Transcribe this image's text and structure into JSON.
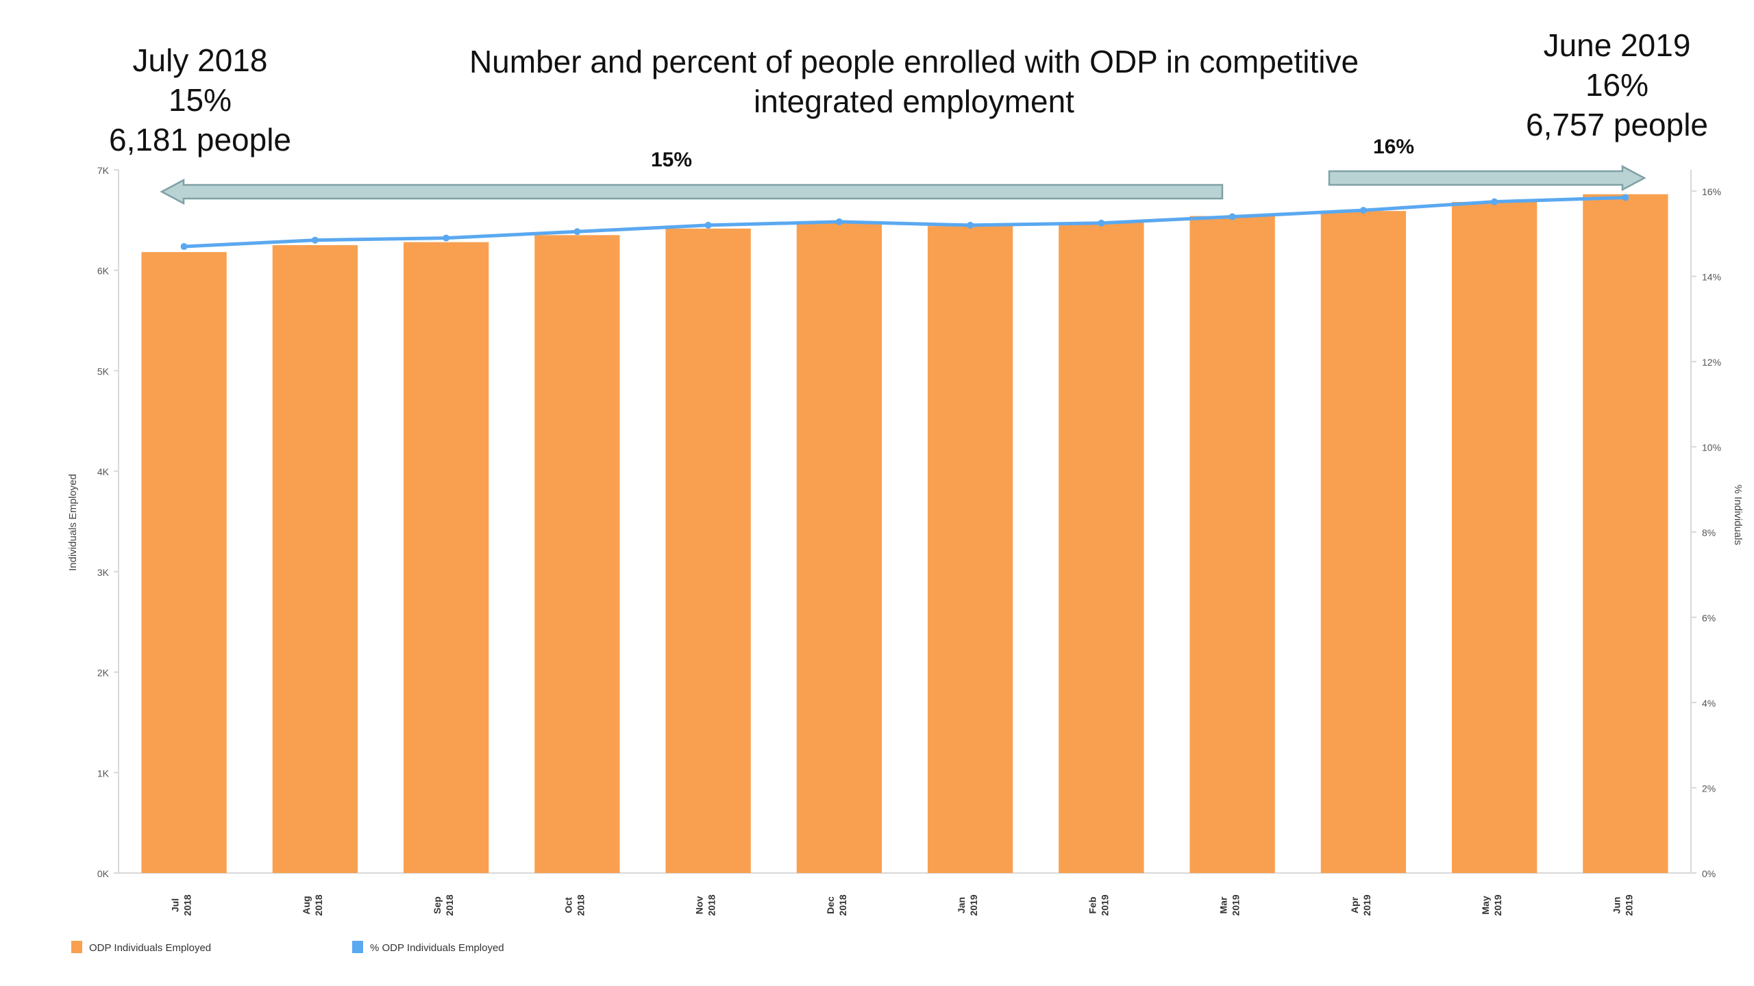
{
  "chart_data": {
    "type": "bar",
    "title_lines": [
      "Number and percent of people enrolled with ODP in competitive",
      "integrated employment"
    ],
    "left_callout_lines": [
      "July 2018",
      "15%",
      "6,181 people"
    ],
    "right_callout_lines": [
      "June 2019",
      "16%",
      "6,757 people"
    ],
    "arrow_labels": {
      "left": "15%",
      "right": "16%"
    },
    "ylabel": "Individuals Employed",
    "y2label": "% Individuals",
    "categories": [
      [
        "Jul",
        "2018"
      ],
      [
        "Aug",
        "2018"
      ],
      [
        "Sep",
        "2018"
      ],
      [
        "Oct",
        "2018"
      ],
      [
        "Nov",
        "2018"
      ],
      [
        "Dec",
        "2018"
      ],
      [
        "Jan",
        "2019"
      ],
      [
        "Feb",
        "2019"
      ],
      [
        "Mar",
        "2019"
      ],
      [
        "Apr",
        "2019"
      ],
      [
        "May",
        "2019"
      ],
      [
        "Jun",
        "2019"
      ]
    ],
    "series": [
      {
        "name": "ODP Individuals Employed",
        "axis": "left",
        "type": "bar",
        "values": [
          6181,
          6250,
          6280,
          6350,
          6415,
          6465,
          6440,
          6475,
          6540,
          6590,
          6680,
          6757
        ]
      },
      {
        "name": "% ODP Individuals Employed",
        "axis": "right",
        "type": "line",
        "values": [
          14.7,
          14.85,
          14.9,
          15.05,
          15.2,
          15.28,
          15.2,
          15.25,
          15.4,
          15.55,
          15.75,
          15.85
        ]
      }
    ],
    "ylim": [
      0,
      7000
    ],
    "yticks": [
      0,
      1000,
      2000,
      3000,
      4000,
      5000,
      6000,
      7000
    ],
    "ytick_labels": [
      "0K",
      "1K",
      "2K",
      "3K",
      "4K",
      "5K",
      "6K",
      "7K"
    ],
    "y2lim": [
      0,
      16.5
    ],
    "y2ticks": [
      0,
      2,
      4,
      6,
      8,
      10,
      12,
      14,
      16
    ],
    "y2tick_labels": [
      "0%",
      "2%",
      "4%",
      "6%",
      "8%",
      "10%",
      "12%",
      "14%",
      "16%"
    ],
    "legend_position": "bottom-left",
    "colors": {
      "bar": "#F8A050",
      "line": "#5AA8F0",
      "arrow_fill": "#B9D2D4",
      "arrow_stroke": "#7FA1A5",
      "axis": "#D8D8D8",
      "text": "#111111",
      "tick_text": "#555555"
    }
  }
}
